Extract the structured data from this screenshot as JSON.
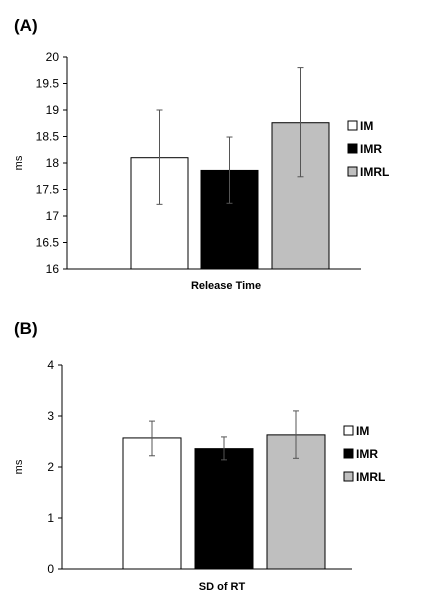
{
  "chart_data": [
    {
      "type": "bar",
      "panel_label": "(A)",
      "xlabel": "Release Time",
      "ylabel": "ms",
      "ylim": [
        16,
        20
      ],
      "yticks": [
        "16",
        "16.5",
        "17",
        "17.5",
        "18",
        "18.5",
        "19",
        "19.5",
        "20"
      ],
      "grid": false,
      "legend_position": "right",
      "series": [
        {
          "name": "IM",
          "value": 18.1,
          "error_low": 17.22,
          "error_high": 19.0,
          "color": "#ffffff"
        },
        {
          "name": "IMR",
          "value": 17.86,
          "error_low": 17.24,
          "error_high": 18.49,
          "color": "#000000"
        },
        {
          "name": "IMRL",
          "value": 18.76,
          "error_low": 17.74,
          "error_high": 19.8,
          "color": "#bfbfbf"
        }
      ]
    },
    {
      "type": "bar",
      "panel_label": "(B)",
      "xlabel": "SD of RT",
      "ylabel": "ms",
      "ylim": [
        0,
        4
      ],
      "yticks": [
        "0",
        "1",
        "2",
        "3",
        "4"
      ],
      "grid": false,
      "legend_position": "right",
      "series": [
        {
          "name": "IM",
          "value": 2.57,
          "error_low": 2.22,
          "error_high": 2.9,
          "color": "#ffffff"
        },
        {
          "name": "IMR",
          "value": 2.36,
          "error_low": 2.14,
          "error_high": 2.59,
          "color": "#000000"
        },
        {
          "name": "IMRL",
          "value": 2.63,
          "error_low": 2.17,
          "error_high": 3.1,
          "color": "#bfbfbf"
        }
      ]
    }
  ]
}
